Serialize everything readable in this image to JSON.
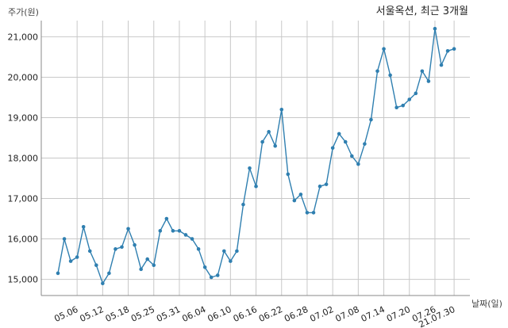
{
  "chart_data": {
    "type": "line",
    "title": "서울옥션, 최근 3개월",
    "xlabel": "날짜(일)",
    "ylabel": "주가(원)",
    "ylim": [
      14600,
      21400
    ],
    "yticks": [
      15000,
      16000,
      17000,
      18000,
      19000,
      20000,
      21000
    ],
    "ytick_labels": [
      "15,000",
      "16,000",
      "17,000",
      "18,000",
      "19,000",
      "20,000",
      "21,000"
    ],
    "xtick_labels": [
      "05.06",
      "05.12",
      "05.18",
      "05.25",
      "05.31",
      "06.04",
      "06.10",
      "06.16",
      "06.22",
      "06.28",
      "07.02",
      "07.08",
      "07.14",
      "07.20",
      "07.26",
      "21.07.30"
    ],
    "xtick_positions": [
      3,
      7,
      11,
      15,
      19,
      23,
      27,
      31,
      35,
      39,
      43,
      47,
      51,
      55,
      59,
      62
    ],
    "grid": true,
    "line_color": "#2f7fb0",
    "series": [
      {
        "name": "",
        "values": [
          15150,
          16000,
          15450,
          15550,
          16300,
          15700,
          15350,
          14900,
          15150,
          15750,
          15800,
          16250,
          15850,
          15250,
          15500,
          15350,
          16200,
          16500,
          16200,
          16200,
          16100,
          16000,
          15750,
          15300,
          15050,
          15100,
          15700,
          15450,
          15700,
          16850,
          17750,
          17300,
          18400,
          18650,
          18300,
          19200,
          17600,
          16950,
          17100,
          16650,
          16650,
          17300,
          17350,
          18250,
          18600,
          18400,
          18050,
          17850,
          18350,
          18950,
          20150,
          20700,
          20050,
          19250,
          19300,
          19450,
          19600,
          20150,
          19900,
          21200,
          20300,
          20650,
          20700
        ]
      }
    ]
  }
}
